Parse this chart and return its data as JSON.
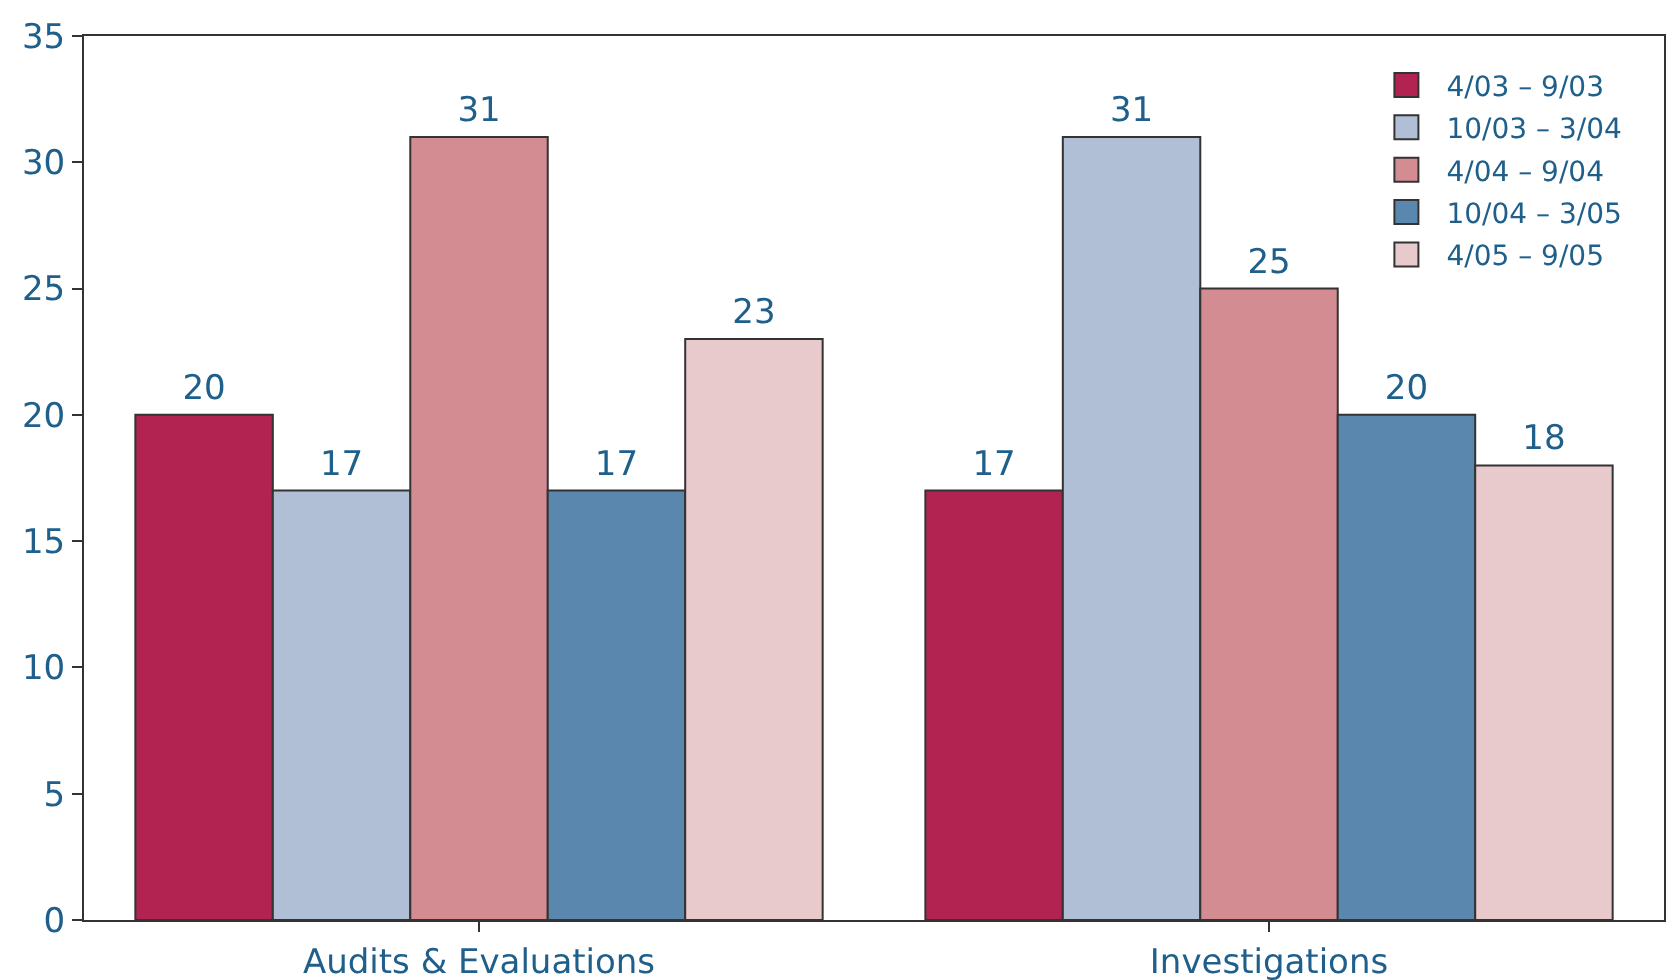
{
  "chart_data": {
    "type": "bar",
    "categories": [
      "Audits & Evaluations",
      "Investigations"
    ],
    "series": [
      {
        "name": "4/03 – 9/03",
        "color": "#b22352",
        "values": [
          20,
          17
        ]
      },
      {
        "name": "10/03 – 3/04",
        "color": "#b0bfd6",
        "values": [
          17,
          31
        ]
      },
      {
        "name": "4/04 – 9/04",
        "color": "#d48c93",
        "values": [
          31,
          25
        ]
      },
      {
        "name": "10/04 – 3/05",
        "color": "#5a87ae",
        "values": [
          17,
          20
        ]
      },
      {
        "name": "4/05 – 9/05",
        "color": "#e8c9cc",
        "values": [
          23,
          18
        ]
      }
    ],
    "ylim": [
      0,
      35
    ],
    "yticks": [
      0,
      5,
      10,
      15,
      20,
      25,
      30,
      35
    ],
    "grid": false,
    "legend": "top right",
    "data_labels": true
  }
}
